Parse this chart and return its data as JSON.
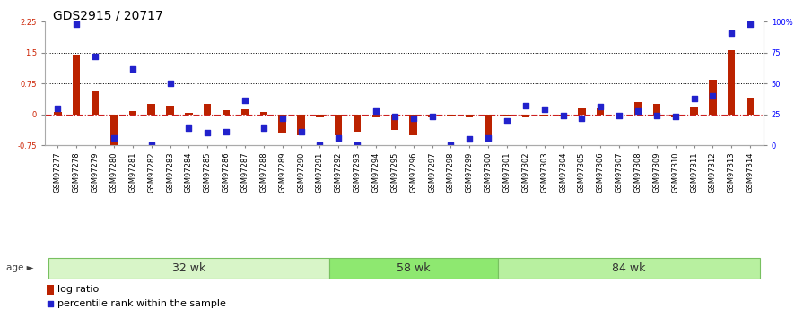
{
  "title": "GDS2915 / 20717",
  "samples": [
    "GSM97277",
    "GSM97278",
    "GSM97279",
    "GSM97280",
    "GSM97281",
    "GSM97282",
    "GSM97283",
    "GSM97284",
    "GSM97285",
    "GSM97286",
    "GSM97287",
    "GSM97288",
    "GSM97289",
    "GSM97290",
    "GSM97291",
    "GSM97292",
    "GSM97293",
    "GSM97294",
    "GSM97295",
    "GSM97296",
    "GSM97297",
    "GSM97298",
    "GSM97299",
    "GSM97300",
    "GSM97301",
    "GSM97302",
    "GSM97303",
    "GSM97304",
    "GSM97305",
    "GSM97306",
    "GSM97307",
    "GSM97308",
    "GSM97309",
    "GSM97310",
    "GSM97311",
    "GSM97312",
    "GSM97313",
    "GSM97314"
  ],
  "log_ratio": [
    0.05,
    1.45,
    0.55,
    -0.85,
    0.08,
    0.25,
    0.22,
    0.03,
    0.25,
    0.1,
    0.12,
    0.05,
    -0.45,
    -0.5,
    -0.07,
    -0.5,
    -0.42,
    -0.07,
    -0.38,
    -0.5,
    -0.07,
    -0.05,
    -0.07,
    -0.55,
    -0.05,
    -0.07,
    -0.05,
    -0.05,
    0.15,
    0.15,
    -0.1,
    0.3,
    0.25,
    -0.07,
    0.18,
    0.85,
    1.55,
    0.4
  ],
  "percentile_pct": [
    30,
    98,
    72,
    6,
    62,
    0,
    50,
    14,
    10,
    11,
    36,
    14,
    22,
    11,
    0,
    6,
    0,
    28,
    23,
    22,
    23,
    0,
    5,
    6,
    20,
    32,
    29,
    24,
    22,
    31,
    24,
    28,
    24,
    23,
    38,
    40,
    91,
    98
  ],
  "groups": [
    {
      "label": "32 wk",
      "start": 0,
      "end": 15
    },
    {
      "label": "58 wk",
      "start": 15,
      "end": 24
    },
    {
      "label": "84 wk",
      "start": 24,
      "end": 38
    }
  ],
  "group_colors": [
    "#d8f5c8",
    "#8ee870",
    "#b8f0a0"
  ],
  "group_edge_color": "#78c060",
  "ylim": [
    -0.75,
    2.25
  ],
  "yticks_left": [
    -0.75,
    0.0,
    0.75,
    1.5,
    2.25
  ],
  "ytick_labels_left": [
    "-0.75",
    "0",
    "0.75",
    "1.5",
    "2.25"
  ],
  "yticks_right_pct": [
    0,
    25,
    50,
    75,
    100
  ],
  "ytick_labels_right": [
    "0",
    "25",
    "50",
    "75",
    "100%"
  ],
  "hlines": [
    1.5,
    0.75
  ],
  "bar_color": "#bb2200",
  "dot_color": "#2222cc",
  "zero_line_color": "#cc2020",
  "bg_color": "#ffffff",
  "plot_bg": "#ffffff",
  "title_fontsize": 10,
  "tick_fontsize": 6,
  "group_fontsize": 9,
  "legend_fontsize": 8,
  "age_label": "age",
  "legend_lr": "log ratio",
  "legend_pct": "percentile rank within the sample"
}
